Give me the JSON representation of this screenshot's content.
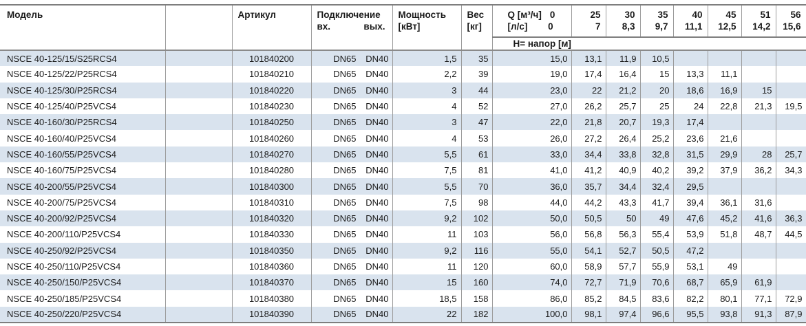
{
  "colors": {
    "row_stripe": "#d9e3ee",
    "grid_line": "#9c9c9c",
    "heavy_line": "#7e7e7e",
    "text": "#1a1a1a"
  },
  "table": {
    "headers": {
      "model": "Модель",
      "article": "Артикул",
      "connection": "Подключение",
      "connection_in": "вх.",
      "connection_out": "вых.",
      "power_line1": "Мощность",
      "power_line2": "[кВт]",
      "weight_line1": "Вес",
      "weight_line2": "[кг]",
      "q_line1_label": "Q [м³/ч]",
      "q_line1_value": "0",
      "q_line2_label": "[л/с]",
      "q_line2_value": "0",
      "head_label": "Н= напор [м]",
      "q_columns": [
        {
          "m3h": "25",
          "ls": "7"
        },
        {
          "m3h": "30",
          "ls": "8,3"
        },
        {
          "m3h": "35",
          "ls": "9,7"
        },
        {
          "m3h": "40",
          "ls": "11,1"
        },
        {
          "m3h": "45",
          "ls": "12,5"
        },
        {
          "m3h": "51",
          "ls": "14,2"
        },
        {
          "m3h": "56",
          "ls": "15,6"
        }
      ]
    },
    "rows": [
      {
        "model": "NSCE 40-125/15/S25RCS4",
        "article": "101840200",
        "conn_in": "DN65",
        "conn_out": "DN40",
        "power": "1,5",
        "weight": "35",
        "h": [
          "15,0",
          "13,1",
          "11,9",
          "10,5",
          "",
          "",
          "",
          ""
        ]
      },
      {
        "model": "NSCE 40-125/22/P25RCS4",
        "article": "101840210",
        "conn_in": "DN65",
        "conn_out": "DN40",
        "power": "2,2",
        "weight": "39",
        "h": [
          "19,0",
          "17,4",
          "16,4",
          "15",
          "13,3",
          "11,1",
          "",
          ""
        ]
      },
      {
        "model": "NSCE 40-125/30/P25RCS4",
        "article": "101840220",
        "conn_in": "DN65",
        "conn_out": "DN40",
        "power": "3",
        "weight": "44",
        "h": [
          "23,0",
          "22",
          "21,2",
          "20",
          "18,6",
          "16,9",
          "15",
          ""
        ]
      },
      {
        "model": "NSCE 40-125/40/P25VCS4",
        "article": "101840230",
        "conn_in": "DN65",
        "conn_out": "DN40",
        "power": "4",
        "weight": "52",
        "h": [
          "27,0",
          "26,2",
          "25,7",
          "25",
          "24",
          "22,8",
          "21,3",
          "19,5"
        ]
      },
      {
        "model": "NSCE 40-160/30/P25RCS4",
        "article": "101840250",
        "conn_in": "DN65",
        "conn_out": "DN40",
        "power": "3",
        "weight": "47",
        "h": [
          "22,0",
          "21,8",
          "20,7",
          "19,3",
          "17,4",
          "",
          "",
          ""
        ]
      },
      {
        "model": "NSCE 40-160/40/P25VCS4",
        "article": "101840260",
        "conn_in": "DN65",
        "conn_out": "DN40",
        "power": "4",
        "weight": "53",
        "h": [
          "26,0",
          "27,2",
          "26,4",
          "25,2",
          "23,6",
          "21,6",
          "",
          ""
        ]
      },
      {
        "model": "NSCE 40-160/55/P25VCS4",
        "article": "101840270",
        "conn_in": "DN65",
        "conn_out": "DN40",
        "power": "5,5",
        "weight": "61",
        "h": [
          "33,0",
          "34,4",
          "33,8",
          "32,8",
          "31,5",
          "29,9",
          "28",
          "25,7"
        ]
      },
      {
        "model": "NSCE 40-160/75/P25VCS4",
        "article": "101840280",
        "conn_in": "DN65",
        "conn_out": "DN40",
        "power": "7,5",
        "weight": "81",
        "h": [
          "41,0",
          "41,2",
          "40,9",
          "40,2",
          "39,2",
          "37,9",
          "36,2",
          "34,3"
        ]
      },
      {
        "model": "NSCE 40-200/55/P25VCS4",
        "article": "101840300",
        "conn_in": "DN65",
        "conn_out": "DN40",
        "power": "5,5",
        "weight": "70",
        "h": [
          "36,0",
          "35,7",
          "34,4",
          "32,4",
          "29,5",
          "",
          "",
          ""
        ]
      },
      {
        "model": "NSCE 40-200/75/P25VCS4",
        "article": "101840310",
        "conn_in": "DN65",
        "conn_out": "DN40",
        "power": "7,5",
        "weight": "98",
        "h": [
          "44,0",
          "44,2",
          "43,3",
          "41,7",
          "39,4",
          "36,1",
          "31,6",
          ""
        ]
      },
      {
        "model": "NSCE 40-200/92/P25VCS4",
        "article": "101840320",
        "conn_in": "DN65",
        "conn_out": "DN40",
        "power": "9,2",
        "weight": "102",
        "h": [
          "50,0",
          "50,5",
          "50",
          "49",
          "47,6",
          "45,2",
          "41,6",
          "36,3"
        ]
      },
      {
        "model": "NSCE 40-200/110/P25VCS4",
        "article": "101840330",
        "conn_in": "DN65",
        "conn_out": "DN40",
        "power": "11",
        "weight": "103",
        "h": [
          "56,0",
          "56,8",
          "56,3",
          "55,4",
          "53,9",
          "51,8",
          "48,7",
          "44,5"
        ]
      },
      {
        "model": "NSCE 40-250/92/P25VCS4",
        "article": "101840350",
        "conn_in": "DN65",
        "conn_out": "DN40",
        "power": "9,2",
        "weight": "116",
        "h": [
          "55,0",
          "54,1",
          "52,7",
          "50,5",
          "47,2",
          "",
          "",
          ""
        ]
      },
      {
        "model": "NSCE 40-250/110/P25VCS4",
        "article": "101840360",
        "conn_in": "DN65",
        "conn_out": "DN40",
        "power": "11",
        "weight": "120",
        "h": [
          "60,0",
          "58,9",
          "57,7",
          "55,9",
          "53,1",
          "49",
          "",
          ""
        ]
      },
      {
        "model": "NSCE 40-250/150/P25VCS4",
        "article": "101840370",
        "conn_in": "DN65",
        "conn_out": "DN40",
        "power": "15",
        "weight": "160",
        "h": [
          "74,0",
          "72,7",
          "71,9",
          "70,6",
          "68,7",
          "65,9",
          "61,9",
          ""
        ]
      },
      {
        "model": "NSCE 40-250/185/P25VCS4",
        "article": "101840380",
        "conn_in": "DN65",
        "conn_out": "DN40",
        "power": "18,5",
        "weight": "158",
        "h": [
          "86,0",
          "85,2",
          "84,5",
          "83,6",
          "82,2",
          "80,1",
          "77,1",
          "72,9"
        ]
      },
      {
        "model": "NSCE 40-250/220/P25VCS4",
        "article": "101840390",
        "conn_in": "DN65",
        "conn_out": "DN40",
        "power": "22",
        "weight": "182",
        "h": [
          "100,0",
          "98,1",
          "97,4",
          "96,6",
          "95,5",
          "93,8",
          "91,3",
          "87,9"
        ]
      }
    ]
  }
}
